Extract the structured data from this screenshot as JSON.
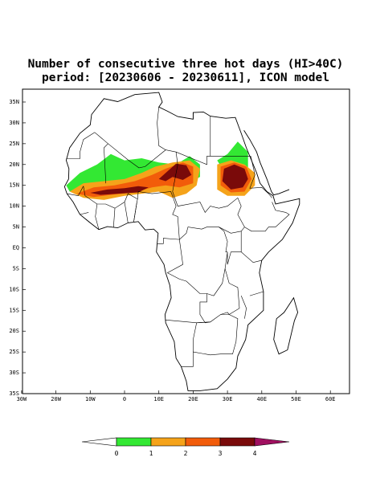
{
  "title": {
    "line1": "Number of consecutive three hot days (HI>40C)",
    "line2": "period: [20230606 - 20230611], ICON model"
  },
  "lon_labels": [
    "30W",
    "20W",
    "10W",
    "0",
    "10E",
    "20E",
    "30E",
    "40E",
    "50E",
    "60E"
  ],
  "lat_labels": [
    "35N",
    "30N",
    "25N",
    "20N",
    "15N",
    "10N",
    "5N",
    "EQ",
    "5S",
    "10S",
    "15S",
    "20S",
    "25S",
    "30S",
    "35S"
  ],
  "colorbar": {
    "labels": [
      "0",
      "1",
      "2",
      "3",
      "4"
    ],
    "colors": [
      "#ffffff",
      "#33e833",
      "#f5a31a",
      "#f25c0a",
      "#7a0a0a",
      "#a01060"
    ]
  }
}
